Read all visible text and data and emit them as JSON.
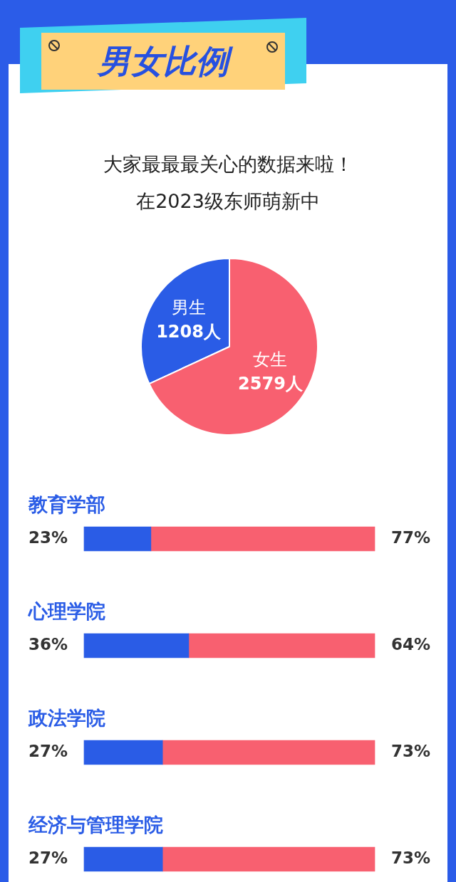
{
  "chart_data": [
    {
      "type": "pie",
      "title": "男女比例",
      "subtitle": "大家最最最关心的数据来啦！",
      "annotations": [
        "在2023级东师萌新中"
      ],
      "categories": [
        "男生",
        "女生"
      ],
      "values": [
        1208,
        2579
      ],
      "value_labels": [
        "1208人",
        "2579人"
      ],
      "colors": [
        "#2a5ce6",
        "#f86070"
      ]
    },
    {
      "type": "bar",
      "orientation": "horizontal",
      "stacked": true,
      "xlim": [
        0,
        100
      ],
      "categories": [
        "教育学部",
        "心理学院",
        "政法学院",
        "经济与管理学院"
      ],
      "series": [
        {
          "color": "#2a5ce6",
          "values": [
            23,
            36,
            27,
            27
          ],
          "value_labels": [
            "23%",
            "36%",
            "27%",
            "27%"
          ]
        },
        {
          "color": "#f86070",
          "values": [
            77,
            64,
            73,
            73
          ],
          "value_labels": [
            "77%",
            "64%",
            "73%",
            "73%"
          ]
        }
      ]
    }
  ]
}
